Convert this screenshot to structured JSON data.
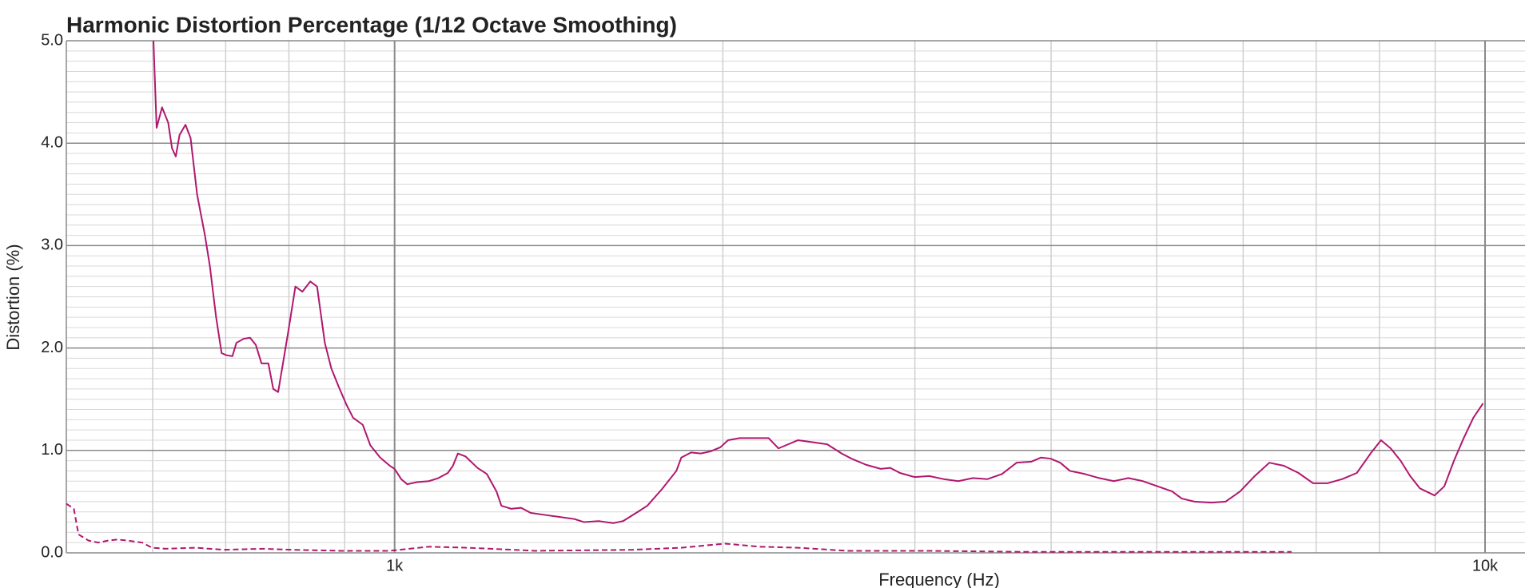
{
  "chart_data": {
    "type": "line",
    "title": "Harmonic Distortion Percentage (1/12 Octave Smoothing)",
    "y_label": "Distortion (%)",
    "x_label": "Frequency (Hz)",
    "x_log": true,
    "grid": true,
    "xlim": [
      500,
      10880
    ],
    "ylim": [
      0,
      5
    ],
    "xticks": [
      {
        "value": 1000,
        "label": "1k"
      },
      {
        "value": 10000,
        "label": "10k"
      }
    ],
    "yticks": [
      {
        "value": 0,
        "label": "0.0"
      },
      {
        "value": 1,
        "label": "1.0"
      },
      {
        "value": 2,
        "label": "2.0"
      },
      {
        "value": 3,
        "label": "3.0"
      },
      {
        "value": 4,
        "label": "4.0"
      },
      {
        "value": 5,
        "label": "5.0"
      }
    ],
    "series": [
      {
        "color": "#b0176f",
        "dashed": false,
        "x": [
          601,
          605,
          612,
          620,
          625,
          630,
          635,
          643,
          650,
          659,
          670,
          677,
          686,
          694,
          701,
          710,
          716,
          727,
          737,
          746,
          755,
          766,
          774,
          782,
          790,
          800,
          811,
          823,
          837,
          849,
          863,
          875,
          888,
          903,
          916,
          935,
          950,
          970,
          990,
          1000,
          1014,
          1027,
          1048,
          1075,
          1097,
          1119,
          1131,
          1143,
          1162,
          1191,
          1215,
          1240,
          1253,
          1279,
          1306,
          1333,
          1374,
          1418,
          1462,
          1492,
          1539,
          1587,
          1620,
          1671,
          1705,
          1758,
          1813,
          1832,
          1870,
          1909,
          1948,
          1989,
          2022,
          2072,
          2137,
          2203,
          2249,
          2296,
          2344,
          2417,
          2493,
          2570,
          2624,
          2706,
          2791,
          2848,
          2907,
          2998,
          3092,
          3188,
          3288,
          3391,
          3497,
          3606,
          3719,
          3835,
          3914,
          3995,
          4078,
          4162,
          4294,
          4428,
          4566,
          4709,
          4856,
          5008,
          5164,
          5271,
          5414,
          5606,
          5781,
          5962,
          6149,
          6341,
          6539,
          6744,
          6954,
          7172,
          7396,
          7628,
          7865,
          8028,
          8194,
          8366,
          8538,
          8714,
          8989,
          9176,
          9365,
          9559,
          9757,
          9959
        ],
        "values": [
          5.0,
          4.15,
          4.35,
          4.2,
          3.95,
          3.87,
          4.08,
          4.18,
          4.05,
          3.5,
          3.1,
          2.8,
          2.3,
          1.95,
          1.93,
          1.92,
          2.05,
          2.09,
          2.1,
          2.03,
          1.85,
          1.85,
          1.6,
          1.57,
          1.85,
          2.2,
          2.6,
          2.55,
          2.65,
          2.6,
          2.05,
          1.8,
          1.63,
          1.45,
          1.32,
          1.25,
          1.05,
          0.93,
          0.85,
          0.82,
          0.72,
          0.67,
          0.69,
          0.7,
          0.73,
          0.78,
          0.85,
          0.97,
          0.94,
          0.83,
          0.77,
          0.6,
          0.46,
          0.43,
          0.44,
          0.39,
          0.37,
          0.35,
          0.33,
          0.3,
          0.31,
          0.29,
          0.31,
          0.4,
          0.46,
          0.62,
          0.8,
          0.93,
          0.98,
          0.97,
          0.99,
          1.03,
          1.1,
          1.12,
          1.12,
          1.12,
          1.02,
          1.06,
          1.1,
          1.08,
          1.06,
          0.97,
          0.92,
          0.86,
          0.82,
          0.83,
          0.78,
          0.74,
          0.75,
          0.72,
          0.7,
          0.73,
          0.72,
          0.77,
          0.88,
          0.89,
          0.93,
          0.92,
          0.88,
          0.8,
          0.77,
          0.73,
          0.7,
          0.73,
          0.7,
          0.65,
          0.6,
          0.53,
          0.5,
          0.49,
          0.5,
          0.6,
          0.75,
          0.88,
          0.85,
          0.78,
          0.68,
          0.68,
          0.72,
          0.78,
          0.98,
          1.1,
          1.02,
          0.9,
          0.75,
          0.63,
          0.56,
          0.65,
          0.9,
          1.12,
          1.32,
          1.46
        ]
      },
      {
        "color": "#b0176f",
        "dashed": true,
        "x": [
          500,
          508,
          513,
          524,
          535,
          546,
          557,
          569,
          587,
          599,
          617,
          657,
          698,
          758,
          806,
          893,
          990,
          1075,
          1166,
          1346,
          1653,
          1832,
          2009,
          2159,
          2344,
          2597,
          3060,
          3758,
          5112,
          6646
        ],
        "values": [
          0.48,
          0.43,
          0.18,
          0.12,
          0.1,
          0.12,
          0.13,
          0.12,
          0.1,
          0.05,
          0.04,
          0.05,
          0.03,
          0.04,
          0.03,
          0.02,
          0.02,
          0.06,
          0.05,
          0.02,
          0.03,
          0.05,
          0.09,
          0.06,
          0.05,
          0.02,
          0.02,
          0.01,
          0.01,
          0.01
        ]
      }
    ]
  }
}
